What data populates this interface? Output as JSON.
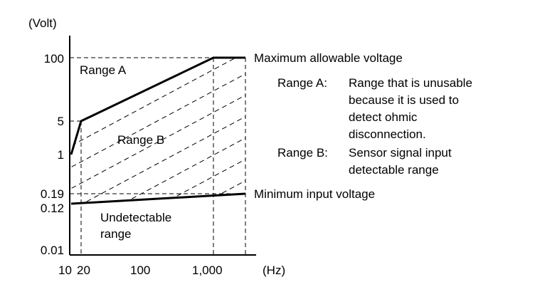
{
  "y_unit": "(Volt)",
  "x_unit": "(Hz)",
  "y_ticks": [
    "100",
    "5",
    "1",
    "0.19",
    "0.12",
    "0.01"
  ],
  "x_ticks": [
    "10",
    "20",
    "100",
    "1,000"
  ],
  "region_labels": {
    "range_a": "Range A",
    "range_b": "Range B",
    "undetectable_line1": "Undetectable",
    "undetectable_line2": "range"
  },
  "curve_labels": {
    "max": "Maximum allowable voltage",
    "min": "Minimum input voltage"
  },
  "legend": {
    "a_key": "Range A:",
    "a_lines": [
      "Range that is unusable",
      "because it is used to",
      "detect ohmic",
      "disconnection."
    ],
    "b_key": "Range B:",
    "b_lines": [
      "Sensor signal input",
      "detectable range"
    ]
  }
}
